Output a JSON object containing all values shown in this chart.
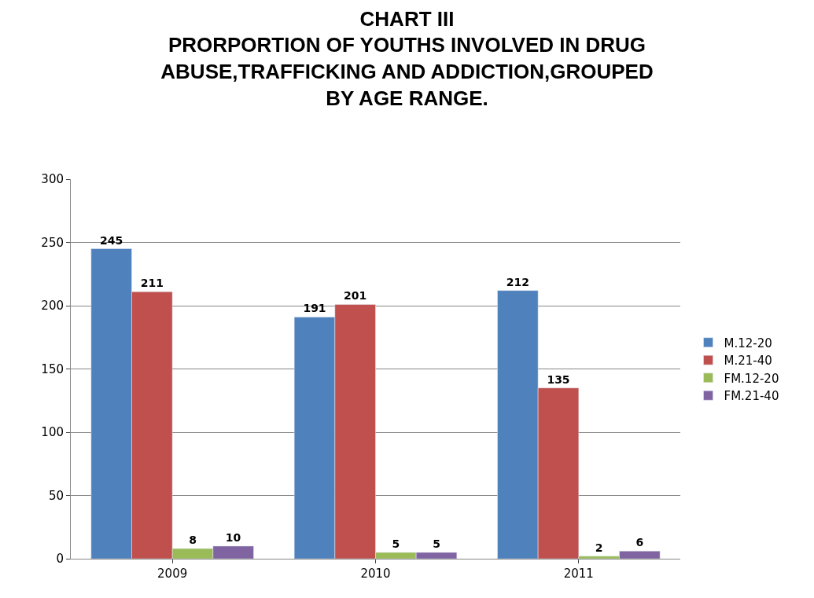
{
  "chart_data": {
    "type": "bar",
    "title": "CHART III\nPRORPORTION OF YOUTHS INVOLVED IN DRUG\nABUSE,TRAFFICKING AND ADDICTION,GROUPED\nBY AGE RANGE.",
    "categories": [
      "2009",
      "2010",
      "2011"
    ],
    "series": [
      {
        "name": "M.12-20",
        "color": "#4f81bd",
        "values": [
          245,
          191,
          212
        ]
      },
      {
        "name": "M.21-40",
        "color": "#c0504d",
        "values": [
          211,
          201,
          135
        ]
      },
      {
        "name": "FM.12-20",
        "color": "#9bbb59",
        "values": [
          8,
          5,
          2
        ]
      },
      {
        "name": "FM.21-40",
        "color": "#8064a2",
        "values": [
          10,
          5,
          6
        ]
      }
    ],
    "ylim": [
      0,
      300
    ],
    "yticks": [
      0,
      50,
      100,
      150,
      200,
      250,
      300
    ],
    "grid": "y",
    "legend": "right",
    "data_labels": true
  }
}
